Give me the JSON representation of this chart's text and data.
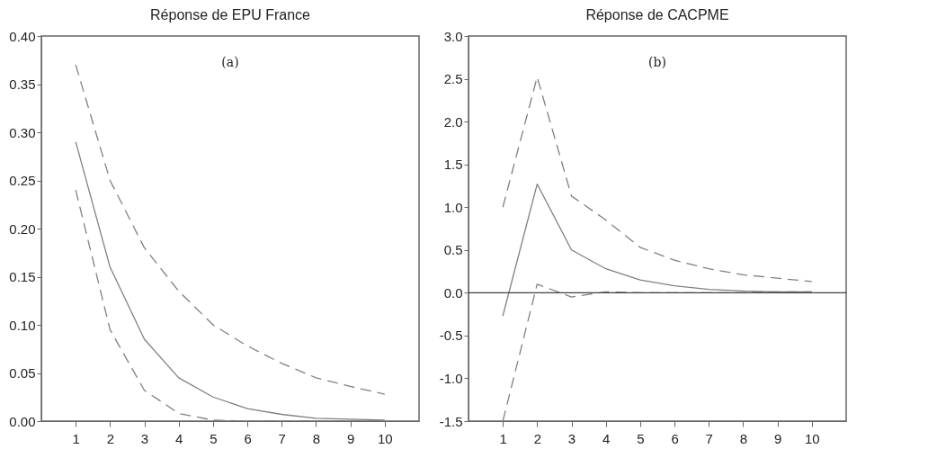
{
  "chart_data": [
    {
      "type": "line",
      "title": "Réponse de EPU France",
      "annotations": [
        "(a)"
      ],
      "x": [
        1,
        2,
        3,
        4,
        5,
        6,
        7,
        8,
        9,
        10
      ],
      "xlim": [
        0,
        11
      ],
      "xticks": [
        1,
        2,
        3,
        4,
        5,
        6,
        7,
        8,
        9,
        10
      ],
      "ylim": [
        0,
        0.4
      ],
      "yticks": [
        {
          "value": 0,
          "label": "0.00"
        },
        {
          "value": 0.05,
          "label": "0.05"
        },
        {
          "value": 0.1,
          "label": "0.10"
        },
        {
          "value": 0.15,
          "label": "0.15"
        },
        {
          "value": 0.2,
          "label": "0.20"
        },
        {
          "value": 0.25,
          "label": "0.25"
        },
        {
          "value": 0.3,
          "label": "0.30"
        },
        {
          "value": 0.35,
          "label": "0.35"
        },
        {
          "value": 0.4,
          "label": "0.40"
        }
      ],
      "grid": false,
      "marker": "none",
      "series": [
        {
          "color": "#808080",
          "line_style": "solid",
          "values": [
            0.29,
            0.16,
            0.085,
            0.045,
            0.025,
            0.013,
            0.007,
            0.003,
            0.002,
            0.001
          ]
        },
        {
          "color": "#808080",
          "line_style": "dashed",
          "values": [
            0.37,
            0.25,
            0.18,
            0.135,
            0.1,
            0.078,
            0.06,
            0.045,
            0.036,
            0.028
          ]
        },
        {
          "color": "#808080",
          "line_style": "dashed",
          "values": [
            0.24,
            0.095,
            0.032,
            0.008,
            0.001,
            0.0,
            0.0,
            0.0,
            0.0,
            0.0
          ]
        }
      ]
    },
    {
      "type": "line",
      "title": "Réponse de CACPME",
      "annotations": [
        "(b)"
      ],
      "x": [
        1,
        2,
        3,
        4,
        5,
        6,
        7,
        8,
        9,
        10
      ],
      "xlim": [
        0,
        11
      ],
      "xticks": [
        1,
        2,
        3,
        4,
        5,
        6,
        7,
        8,
        9,
        10
      ],
      "ylim": [
        -1.5,
        3.0
      ],
      "yticks": [
        {
          "value": -1.5,
          "label": "-1.5"
        },
        {
          "value": -1,
          "label": "-1.0"
        },
        {
          "value": -0.5,
          "label": "-0.5"
        },
        {
          "value": 0,
          "label": "0.0"
        },
        {
          "value": 0.5,
          "label": "0.5"
        },
        {
          "value": 1,
          "label": "1.0"
        },
        {
          "value": 1.5,
          "label": "1.5"
        },
        {
          "value": 2,
          "label": "2.0"
        },
        {
          "value": 2.5,
          "label": "2.5"
        },
        {
          "value": 3,
          "label": "3.0"
        }
      ],
      "grid": false,
      "marker": "none",
      "ref_lines": [
        {
          "axis": "y",
          "value": 0,
          "color": "#404040",
          "line_style": "solid"
        }
      ],
      "series": [
        {
          "color": "#808080",
          "line_style": "solid",
          "values": [
            -0.27,
            1.27,
            0.5,
            0.28,
            0.15,
            0.08,
            0.04,
            0.02,
            0.01,
            0.01
          ]
        },
        {
          "color": "#808080",
          "line_style": "dashed",
          "values": [
            1.0,
            2.52,
            1.13,
            0.85,
            0.53,
            0.38,
            0.28,
            0.21,
            0.17,
            0.13
          ]
        },
        {
          "color": "#808080",
          "line_style": "dashed",
          "values": [
            -1.5,
            0.1,
            -0.05,
            0.01,
            0.0,
            0.0,
            0.0,
            0.0,
            0.01,
            0.01
          ]
        }
      ]
    }
  ]
}
